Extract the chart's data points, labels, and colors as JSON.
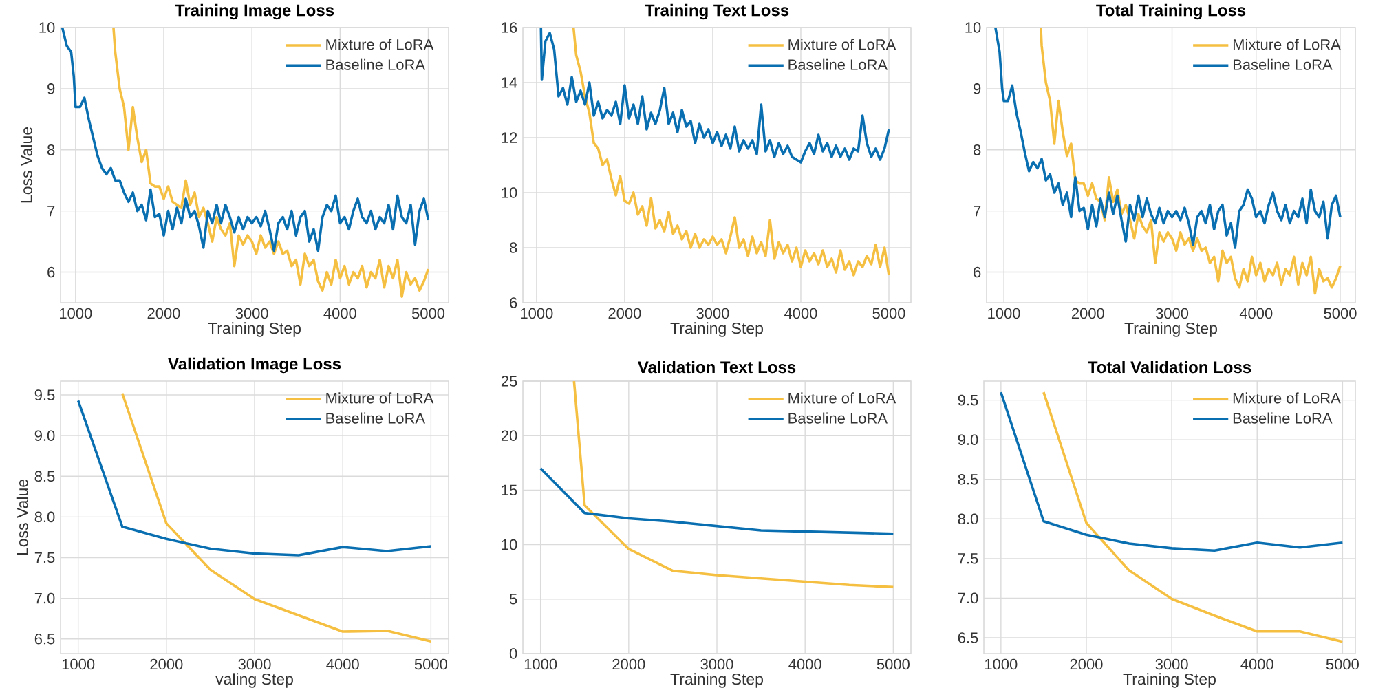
{
  "chart_data": [
    {
      "type": "line",
      "title": "Training Image Loss",
      "xlabel": "Training Step",
      "ylabel": "Loss Value",
      "xlim": [
        830,
        5230
      ],
      "ylim": [
        5.5,
        10
      ],
      "xticks": [
        1000,
        2000,
        3000,
        4000,
        5000
      ],
      "yticks": [
        6,
        7,
        8,
        9,
        10
      ],
      "grid": true,
      "legend": "top right",
      "series": [
        {
          "name": "Mixture of LoRA",
          "color": "#f5bf42",
          "x": [
            1430,
            1450,
            1500,
            1550,
            1600,
            1650,
            1700,
            1750,
            1800,
            1850,
            1900,
            1950,
            2000,
            2050,
            2100,
            2150,
            2200,
            2250,
            2300,
            2350,
            2400,
            2450,
            2500,
            2550,
            2600,
            2650,
            2700,
            2750,
            2800,
            2850,
            2900,
            2950,
            3000,
            3050,
            3100,
            3150,
            3200,
            3250,
            3300,
            3350,
            3400,
            3450,
            3500,
            3550,
            3600,
            3650,
            3700,
            3750,
            3800,
            3850,
            3900,
            3950,
            4000,
            4050,
            4100,
            4150,
            4200,
            4250,
            4300,
            4350,
            4400,
            4450,
            4500,
            4550,
            4600,
            4650,
            4700,
            4750,
            4800,
            4850,
            4900,
            4950,
            5000
          ],
          "values": [
            10,
            9.6,
            9.0,
            8.7,
            8.0,
            8.7,
            8.2,
            7.8,
            8.0,
            7.45,
            7.4,
            7.4,
            7.2,
            7.4,
            7.15,
            7.1,
            7.05,
            7.5,
            7.1,
            7.3,
            6.9,
            7.05,
            6.8,
            6.5,
            6.9,
            6.7,
            6.6,
            6.8,
            6.1,
            6.6,
            6.45,
            6.6,
            6.5,
            6.3,
            6.6,
            6.4,
            6.5,
            6.3,
            6.5,
            6.3,
            6.35,
            6.1,
            6.2,
            5.8,
            6.3,
            6.1,
            6.2,
            5.85,
            5.7,
            6.0,
            5.8,
            6.2,
            5.9,
            6.1,
            5.8,
            6.0,
            5.9,
            6.1,
            5.75,
            6.0,
            5.9,
            6.2,
            5.75,
            6.1,
            5.9,
            6.2,
            5.6,
            6.0,
            5.8,
            5.9,
            5.7,
            5.85,
            6.05
          ]
        },
        {
          "name": "Baseline LoRA",
          "color": "#0a6fb0",
          "x": [
            850,
            900,
            950,
            980,
            1000,
            1050,
            1100,
            1150,
            1200,
            1250,
            1300,
            1350,
            1400,
            1450,
            1500,
            1550,
            1600,
            1650,
            1700,
            1750,
            1800,
            1850,
            1900,
            1950,
            2000,
            2050,
            2100,
            2150,
            2200,
            2250,
            2300,
            2350,
            2400,
            2450,
            2500,
            2550,
            2600,
            2650,
            2700,
            2750,
            2800,
            2850,
            2900,
            2950,
            3000,
            3050,
            3100,
            3150,
            3200,
            3250,
            3300,
            3350,
            3400,
            3450,
            3500,
            3550,
            3600,
            3650,
            3700,
            3750,
            3800,
            3850,
            3900,
            3950,
            4000,
            4050,
            4100,
            4150,
            4200,
            4250,
            4300,
            4350,
            4400,
            4450,
            4500,
            4550,
            4600,
            4650,
            4700,
            4750,
            4800,
            4850,
            4900,
            4950,
            5000
          ],
          "values": [
            10.0,
            9.7,
            9.6,
            9.2,
            8.7,
            8.7,
            8.85,
            8.5,
            8.2,
            7.9,
            7.7,
            7.6,
            7.7,
            7.5,
            7.5,
            7.3,
            7.15,
            7.3,
            7.0,
            7.1,
            6.85,
            7.35,
            6.9,
            6.95,
            6.6,
            7.0,
            6.7,
            7.05,
            6.8,
            7.2,
            6.9,
            7.0,
            6.75,
            6.4,
            7.0,
            6.8,
            7.1,
            6.8,
            7.1,
            6.9,
            6.65,
            6.9,
            6.7,
            6.9,
            6.8,
            6.9,
            6.75,
            7.0,
            6.7,
            6.35,
            6.8,
            6.9,
            6.7,
            7.0,
            6.6,
            6.9,
            7.0,
            6.5,
            6.7,
            6.35,
            6.9,
            7.1,
            7.0,
            7.25,
            6.8,
            6.9,
            6.7,
            7.0,
            7.2,
            6.9,
            6.8,
            7.0,
            6.7,
            6.9,
            6.8,
            7.1,
            6.7,
            7.25,
            6.9,
            6.8,
            7.1,
            6.45,
            7.0,
            7.2,
            6.85
          ]
        }
      ]
    },
    {
      "type": "line",
      "title": "Training Text Loss",
      "xlabel": "Training Step",
      "xlim": [
        845,
        5250
      ],
      "ylim": [
        6,
        16
      ],
      "xticks": [
        1000,
        2000,
        3000,
        4000,
        5000
      ],
      "yticks": [
        6,
        8,
        10,
        12,
        14,
        16
      ],
      "grid": true,
      "legend": "top right",
      "series": [
        {
          "name": "Mixture of LoRA",
          "color": "#f5bf42",
          "x": [
            1420,
            1450,
            1500,
            1550,
            1600,
            1650,
            1700,
            1750,
            1800,
            1850,
            1900,
            1950,
            2000,
            2050,
            2100,
            2150,
            2200,
            2250,
            2300,
            2350,
            2400,
            2450,
            2500,
            2550,
            2600,
            2650,
            2700,
            2750,
            2800,
            2850,
            2900,
            2950,
            3000,
            3050,
            3100,
            3150,
            3200,
            3250,
            3300,
            3350,
            3400,
            3450,
            3500,
            3550,
            3600,
            3650,
            3700,
            3750,
            3800,
            3850,
            3900,
            3950,
            4000,
            4050,
            4100,
            4150,
            4200,
            4250,
            4300,
            4350,
            4400,
            4450,
            4500,
            4550,
            4600,
            4650,
            4700,
            4750,
            4800,
            4850,
            4900,
            4950,
            5000
          ],
          "values": [
            16,
            15.0,
            14.4,
            13.5,
            12.9,
            11.8,
            11.6,
            11.0,
            11.2,
            10.5,
            9.9,
            10.6,
            9.7,
            9.6,
            10.0,
            9.2,
            9.5,
            8.8,
            9.8,
            8.7,
            9.0,
            8.6,
            9.3,
            8.5,
            8.8,
            8.3,
            8.6,
            8.0,
            8.5,
            8.0,
            8.3,
            8.1,
            8.4,
            8.1,
            8.3,
            7.8,
            8.4,
            9.1,
            8.0,
            8.3,
            7.7,
            8.4,
            7.8,
            8.2,
            7.7,
            9.0,
            7.6,
            8.2,
            7.8,
            8.1,
            7.5,
            8.0,
            7.3,
            7.9,
            7.5,
            7.8,
            7.4,
            7.9,
            7.3,
            7.6,
            7.1,
            7.9,
            7.2,
            7.5,
            7.0,
            7.5,
            7.3,
            7.7,
            7.4,
            8.1,
            7.3,
            8.0,
            7.0
          ]
        },
        {
          "name": "Baseline LoRA",
          "color": "#0a6fb0",
          "x": [
            1050,
            1060,
            1100,
            1150,
            1200,
            1250,
            1300,
            1350,
            1400,
            1450,
            1500,
            1550,
            1600,
            1650,
            1700,
            1750,
            1800,
            1850,
            1900,
            1950,
            2000,
            2050,
            2100,
            2150,
            2200,
            2250,
            2300,
            2350,
            2400,
            2450,
            2500,
            2550,
            2600,
            2650,
            2700,
            2750,
            2800,
            2850,
            2900,
            2950,
            3000,
            3050,
            3100,
            3150,
            3200,
            3250,
            3300,
            3350,
            3400,
            3450,
            3500,
            3550,
            3600,
            3650,
            3700,
            3750,
            3800,
            3850,
            3900,
            3950,
            4000,
            4050,
            4100,
            4150,
            4200,
            4250,
            4300,
            4350,
            4400,
            4450,
            4500,
            4550,
            4600,
            4650,
            4700,
            4750,
            4800,
            4850,
            4900,
            4950,
            5000
          ],
          "values": [
            16,
            14.1,
            15.5,
            15.8,
            15.2,
            13.5,
            13.8,
            13.2,
            14.2,
            13.3,
            13.7,
            13.2,
            14.0,
            12.8,
            13.3,
            12.7,
            13.0,
            12.8,
            13.3,
            12.5,
            13.9,
            12.7,
            13.2,
            12.5,
            13.5,
            12.3,
            12.9,
            12.5,
            13.0,
            13.8,
            12.5,
            12.9,
            12.2,
            13.0,
            12.4,
            12.6,
            11.8,
            12.5,
            12.0,
            12.3,
            11.8,
            12.2,
            11.7,
            12.1,
            11.6,
            12.4,
            11.5,
            11.9,
            11.6,
            11.9,
            11.4,
            13.2,
            11.5,
            11.9,
            11.3,
            11.8,
            11.4,
            11.7,
            11.3,
            11.2,
            11.1,
            11.5,
            11.8,
            11.4,
            12.1,
            11.5,
            11.8,
            11.3,
            11.7,
            11.3,
            11.6,
            11.2,
            11.6,
            11.5,
            12.8,
            11.8,
            11.3,
            11.6,
            11.2,
            11.6,
            12.3
          ]
        }
      ]
    },
    {
      "type": "line",
      "title": "Total Training Loss",
      "xlabel": "Training Step",
      "xlim": [
        795,
        5180
      ],
      "ylim": [
        5.5,
        10
      ],
      "xticks": [
        1000,
        2000,
        3000,
        4000,
        5000
      ],
      "yticks": [
        6,
        7,
        8,
        9,
        10
      ],
      "grid": true,
      "legend": "top right",
      "series": [
        {
          "name": "Mixture of LoRA",
          "color": "#f5bf42",
          "x": [
            1440,
            1450,
            1500,
            1550,
            1600,
            1650,
            1700,
            1750,
            1800,
            1850,
            1900,
            1950,
            2000,
            2050,
            2100,
            2150,
            2200,
            2250,
            2300,
            2350,
            2400,
            2450,
            2500,
            2550,
            2600,
            2650,
            2700,
            2750,
            2800,
            2850,
            2900,
            2950,
            3000,
            3050,
            3100,
            3150,
            3200,
            3250,
            3300,
            3350,
            3400,
            3450,
            3500,
            3550,
            3600,
            3650,
            3700,
            3750,
            3800,
            3850,
            3900,
            3950,
            4000,
            4050,
            4100,
            4150,
            4200,
            4250,
            4300,
            4350,
            4400,
            4450,
            4500,
            4550,
            4600,
            4650,
            4700,
            4750,
            4800,
            4850,
            4900,
            4950,
            5000
          ],
          "values": [
            10,
            9.7,
            9.1,
            8.8,
            8.1,
            8.8,
            8.3,
            7.9,
            8.1,
            7.5,
            7.45,
            7.45,
            7.25,
            7.45,
            7.2,
            7.15,
            6.85,
            7.55,
            7.15,
            7.35,
            6.95,
            7.1,
            6.85,
            6.55,
            6.95,
            6.75,
            6.65,
            6.85,
            6.15,
            6.65,
            6.5,
            6.65,
            6.55,
            6.35,
            6.65,
            6.45,
            6.55,
            6.35,
            6.55,
            6.35,
            6.4,
            6.15,
            6.25,
            5.85,
            6.35,
            6.15,
            6.25,
            5.9,
            5.75,
            6.05,
            5.85,
            6.25,
            5.95,
            6.15,
            5.85,
            6.05,
            5.95,
            6.15,
            5.8,
            6.05,
            5.95,
            6.25,
            5.8,
            6.15,
            5.95,
            6.25,
            5.65,
            6.05,
            5.85,
            5.9,
            5.75,
            5.9,
            6.1
          ]
        },
        {
          "name": "Baseline LoRA",
          "color": "#0a6fb0",
          "x": [
            900,
            950,
            980,
            1000,
            1050,
            1100,
            1150,
            1200,
            1250,
            1300,
            1350,
            1400,
            1450,
            1500,
            1550,
            1600,
            1650,
            1700,
            1750,
            1800,
            1850,
            1900,
            1950,
            2000,
            2050,
            2100,
            2150,
            2200,
            2250,
            2300,
            2350,
            2400,
            2450,
            2500,
            2550,
            2600,
            2650,
            2700,
            2750,
            2800,
            2850,
            2900,
            2950,
            3000,
            3050,
            3100,
            3150,
            3200,
            3250,
            3300,
            3350,
            3400,
            3450,
            3500,
            3550,
            3600,
            3650,
            3700,
            3750,
            3800,
            3850,
            3900,
            3950,
            4000,
            4050,
            4100,
            4150,
            4200,
            4250,
            4300,
            4350,
            4400,
            4450,
            4500,
            4550,
            4600,
            4650,
            4700,
            4750,
            4800,
            4850,
            4900,
            4950,
            5000
          ],
          "values": [
            10.0,
            9.6,
            9.0,
            8.8,
            8.8,
            9.05,
            8.6,
            8.3,
            7.95,
            7.65,
            7.8,
            7.7,
            7.85,
            7.5,
            7.6,
            7.3,
            7.45,
            7.1,
            7.3,
            6.9,
            7.55,
            7.0,
            7.05,
            6.7,
            7.1,
            6.75,
            7.2,
            6.9,
            7.3,
            6.95,
            7.25,
            6.85,
            6.5,
            7.1,
            6.85,
            7.25,
            6.9,
            7.2,
            6.95,
            6.8,
            7.05,
            6.8,
            7.0,
            6.9,
            7.0,
            6.85,
            7.05,
            6.8,
            6.45,
            6.9,
            7.0,
            6.8,
            7.1,
            6.7,
            7.0,
            7.1,
            6.6,
            6.8,
            6.4,
            7.0,
            7.1,
            7.35,
            7.2,
            6.9,
            7.0,
            6.8,
            7.1,
            7.3,
            7.0,
            6.85,
            7.1,
            6.8,
            7.0,
            6.9,
            7.2,
            6.8,
            7.35,
            7.0,
            6.9,
            7.15,
            6.55,
            7.1,
            7.25,
            6.9
          ]
        }
      ]
    },
    {
      "type": "line",
      "title": "Validation Image Loss",
      "xlabel": "valing Step",
      "ylabel": "Loss Value",
      "xlim": [
        800,
        5200
      ],
      "ylim": [
        6.32,
        9.67
      ],
      "xticks": [
        1000,
        2000,
        3000,
        4000,
        5000
      ],
      "yticks": [
        6.5,
        {
          "value": 7,
          "label": "7.0"
        },
        7.5,
        {
          "value": 8,
          "label": "8.0"
        },
        8.5,
        {
          "value": 9,
          "label": "9.0"
        },
        9.5
      ],
      "grid": true,
      "legend": "top right",
      "series": [
        {
          "name": "Mixture of LoRA",
          "color": "#f5bf42",
          "x": [
            1500,
            2000,
            2500,
            3000,
            3500,
            4000,
            4500,
            5000
          ],
          "values": [
            9.52,
            7.92,
            7.35,
            6.99,
            6.79,
            6.59,
            6.6,
            6.47
          ]
        },
        {
          "name": "Baseline LoRA",
          "color": "#0a6fb0",
          "x": [
            1000,
            1500,
            2000,
            2500,
            3000,
            3500,
            4000,
            4500,
            5000
          ],
          "values": [
            9.43,
            7.88,
            7.73,
            7.61,
            7.55,
            7.53,
            7.63,
            7.58,
            7.64
          ]
        }
      ]
    },
    {
      "type": "line",
      "title": "Validation Text Loss",
      "xlabel": "Training Step",
      "xlim": [
        800,
        5200
      ],
      "ylim": [
        0,
        25
      ],
      "xticks": [
        1000,
        2000,
        3000,
        4000,
        5000
      ],
      "yticks": [
        0,
        5,
        10,
        15,
        20,
        25
      ],
      "grid": true,
      "legend": "top right",
      "series": [
        {
          "name": "Mixture of LoRA",
          "color": "#f5bf42",
          "x": [
            1380,
            1500,
            2000,
            2500,
            3000,
            3500,
            4000,
            4500,
            5000
          ],
          "values": [
            25,
            13.6,
            9.6,
            7.6,
            7.2,
            6.9,
            6.6,
            6.3,
            6.1
          ]
        },
        {
          "name": "Baseline LoRA",
          "color": "#0a6fb0",
          "x": [
            1000,
            1500,
            2000,
            2500,
            3000,
            3500,
            4000,
            4500,
            5000
          ],
          "values": [
            17,
            12.9,
            12.4,
            12.1,
            11.7,
            11.3,
            11.2,
            11.1,
            11.0
          ]
        }
      ]
    },
    {
      "type": "line",
      "title": "Total Validation Loss",
      "xlabel": "Training Step",
      "xlim": [
        800,
        5150
      ],
      "ylim": [
        6.3,
        9.74
      ],
      "xticks": [
        1000,
        2000,
        3000,
        4000,
        5000
      ],
      "yticks": [
        6.5,
        {
          "value": 7,
          "label": "7.0"
        },
        7.5,
        {
          "value": 8,
          "label": "8.0"
        },
        8.5,
        {
          "value": 9,
          "label": "9.0"
        },
        9.5
      ],
      "grid": true,
      "legend": "top right",
      "series": [
        {
          "name": "Mixture of LoRA",
          "color": "#f5bf42",
          "x": [
            1500,
            2000,
            2500,
            3000,
            3500,
            4000,
            4500,
            5000
          ],
          "values": [
            9.6,
            7.95,
            7.35,
            6.99,
            6.78,
            6.58,
            6.58,
            6.45
          ]
        },
        {
          "name": "Baseline LoRA",
          "color": "#0a6fb0",
          "x": [
            1000,
            1500,
            2000,
            2500,
            3000,
            3500,
            4000,
            4500,
            5000
          ],
          "values": [
            9.6,
            7.97,
            7.8,
            7.69,
            7.63,
            7.6,
            7.7,
            7.64,
            7.7
          ]
        }
      ]
    }
  ]
}
